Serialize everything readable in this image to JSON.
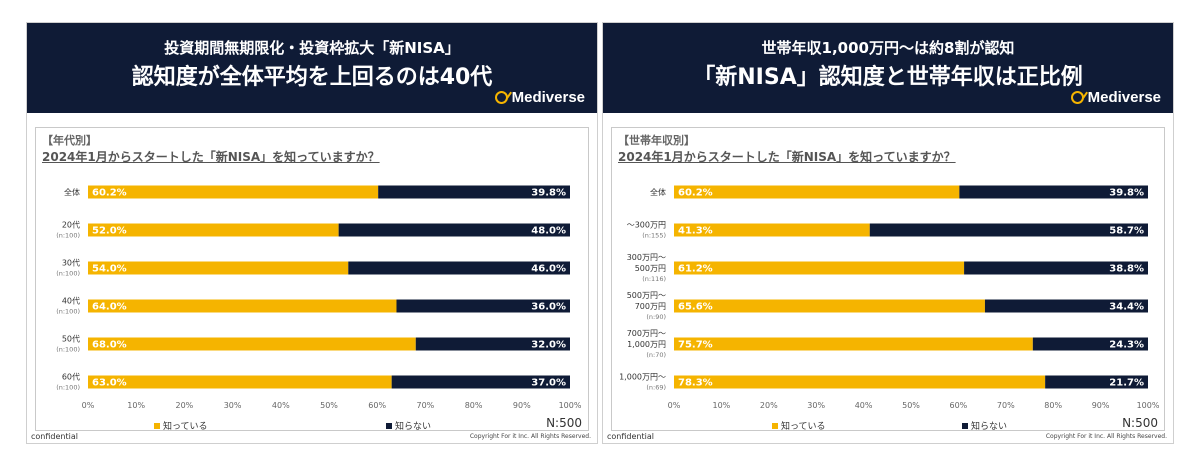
{
  "colors": {
    "banner": "#0f1b36",
    "known": "#f5b400",
    "unknown": "#0f1b36",
    "accent": "#f5b400"
  },
  "brand": {
    "name": "Mediverse",
    "icon": "mediverse-logo-icon"
  },
  "footer": {
    "confidential": "confidential",
    "copyright": "Copyright For it Inc. All Rights Reserved."
  },
  "slides": [
    {
      "banner_line1": "投資期間無期限化・投資枠拡大「新NISA」",
      "banner_line2": "認知度が全体平均を上回るのは40代",
      "section": "【年代別】",
      "question": "2024年1月からスタートした「新NISA」を知っていますか？",
      "n_label": "N:500",
      "legend": {
        "known": "知っている",
        "unknown": "知らない"
      }
    },
    {
      "banner_line1": "世帯年収1,000万円～は約8割が認知",
      "banner_line2": "「新NISA」認知度と世帯年収は正比例",
      "section": "【世帯年収別】",
      "question": "2024年1月からスタートした「新NISA」を知っていますか？",
      "n_label": "N:500",
      "legend": {
        "known": "知っている",
        "unknown": "知らない"
      }
    }
  ],
  "chart_data": [
    {
      "type": "bar",
      "orientation": "horizontal",
      "stacked": true,
      "xlim": [
        0,
        100
      ],
      "ticks": [
        "0%",
        "10%",
        "20%",
        "30%",
        "40%",
        "50%",
        "60%",
        "70%",
        "80%",
        "90%",
        "100%"
      ],
      "categories": [
        {
          "label": [
            "全体"
          ],
          "sub": ""
        },
        {
          "label": [
            "20代"
          ],
          "sub": "(n:100)"
        },
        {
          "label": [
            "30代"
          ],
          "sub": "(n:100)"
        },
        {
          "label": [
            "40代"
          ],
          "sub": "(n:100)"
        },
        {
          "label": [
            "50代"
          ],
          "sub": "(n:100)"
        },
        {
          "label": [
            "60代"
          ],
          "sub": "(n:100)"
        }
      ],
      "series": [
        {
          "name": "知っている",
          "values": [
            60.2,
            52.0,
            54.0,
            64.0,
            68.0,
            63.0
          ],
          "labels": [
            "60.2%",
            "52.0%",
            "54.0%",
            "64.0%",
            "68.0%",
            "63.0%"
          ]
        },
        {
          "name": "知らない",
          "values": [
            39.8,
            48.0,
            46.0,
            36.0,
            32.0,
            37.0
          ],
          "labels": [
            "39.8%",
            "48.0%",
            "46.0%",
            "36.0%",
            "32.0%",
            "37.0%"
          ]
        }
      ]
    },
    {
      "type": "bar",
      "orientation": "horizontal",
      "stacked": true,
      "xlim": [
        0,
        100
      ],
      "ticks": [
        "0%",
        "10%",
        "20%",
        "30%",
        "40%",
        "50%",
        "60%",
        "70%",
        "80%",
        "90%",
        "100%"
      ],
      "categories": [
        {
          "label": [
            "全体"
          ],
          "sub": ""
        },
        {
          "label": [
            "～300万円"
          ],
          "sub": "(n:155)"
        },
        {
          "label": [
            "300万円～",
            "500万円"
          ],
          "sub": "(n:116)"
        },
        {
          "label": [
            "500万円～",
            "700万円"
          ],
          "sub": "(n:90)"
        },
        {
          "label": [
            "700万円～",
            "1,000万円"
          ],
          "sub": "(n:70)"
        },
        {
          "label": [
            "1,000万円～"
          ],
          "sub": "(n:69)"
        }
      ],
      "series": [
        {
          "name": "知っている",
          "values": [
            60.2,
            41.3,
            61.2,
            65.6,
            75.7,
            78.3
          ],
          "labels": [
            "60.2%",
            "41.3%",
            "61.2%",
            "65.6%",
            "75.7%",
            "78.3%"
          ]
        },
        {
          "name": "知らない",
          "values": [
            39.8,
            58.7,
            38.8,
            34.4,
            24.3,
            21.7
          ],
          "labels": [
            "39.8%",
            "58.7%",
            "38.8%",
            "34.4%",
            "24.3%",
            "21.7%"
          ]
        }
      ]
    }
  ]
}
